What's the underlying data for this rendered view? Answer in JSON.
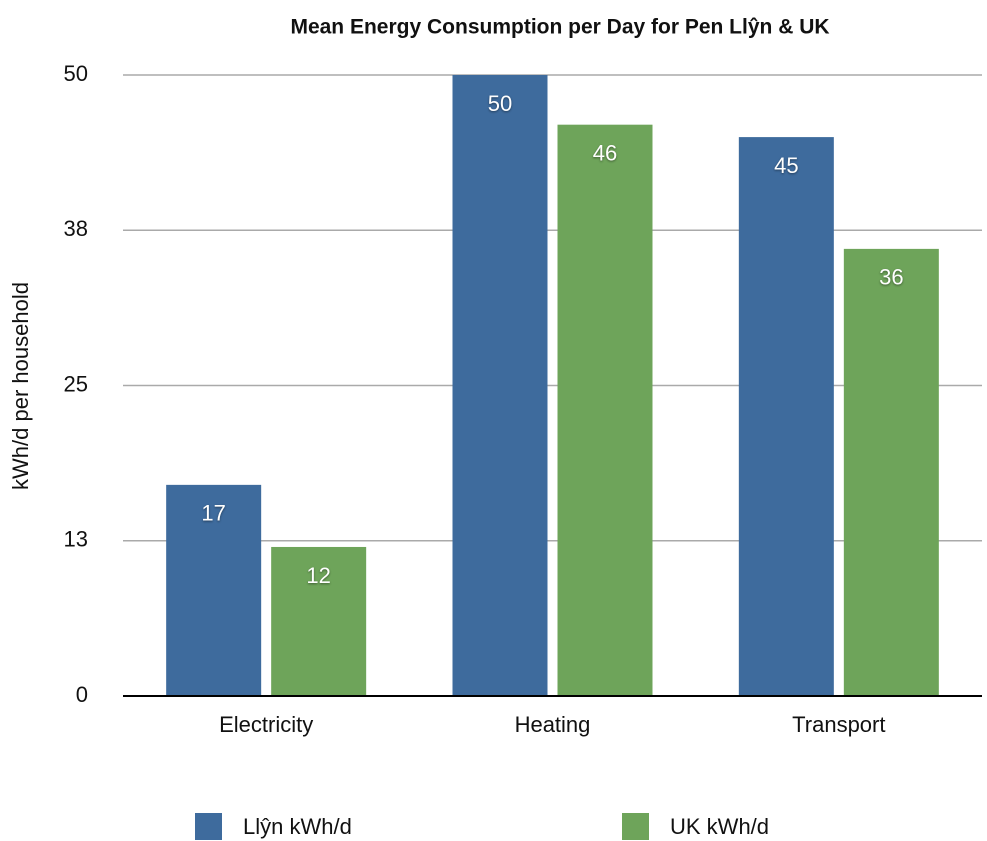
{
  "chart_data": {
    "type": "bar",
    "title": "Mean Energy Consumption per Day for Pen Llŷn & UK",
    "y_label": "kWh/d per household",
    "categories": [
      "Electricity",
      "Heating",
      "Transport"
    ],
    "series": [
      {
        "name": "Llŷn kWh/d",
        "color": "#3e6b9d",
        "values": [
          17,
          50,
          45
        ]
      },
      {
        "name": "UK kWh/d",
        "color": "#6ea45a",
        "values": [
          12,
          46,
          36
        ]
      }
    ],
    "ylim": [
      0,
      50
    ],
    "yticks": [
      0,
      {
        "value": 12.5,
        "label": "13"
      },
      25,
      {
        "value": 37.5,
        "label": "38"
      },
      50
    ],
    "grid": true
  }
}
